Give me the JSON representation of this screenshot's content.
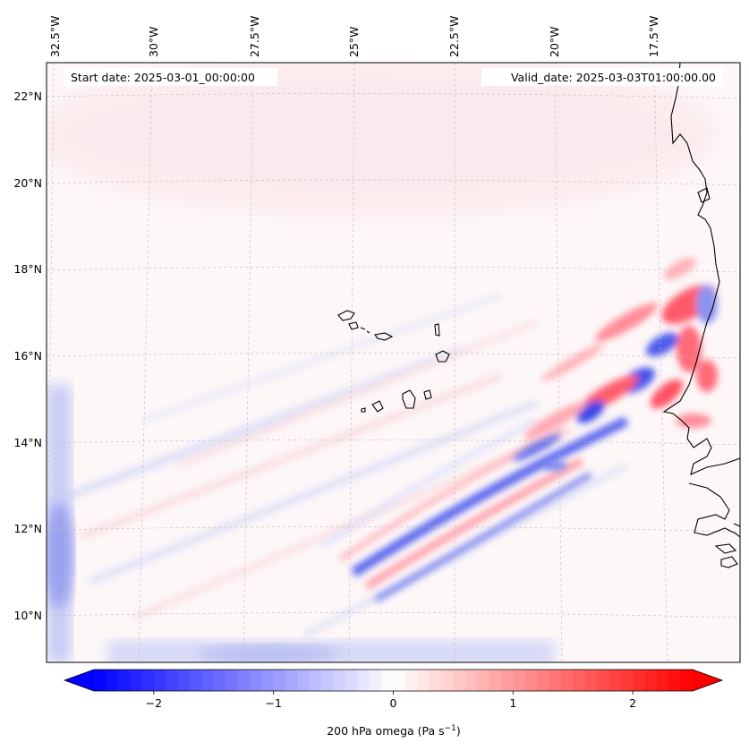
{
  "map": {
    "start_date": "Start date: 2025-03-01_00:00:00",
    "valid_date": "Valid_date: 2025-03-03T01:00:00.00",
    "lon_labels": [
      "32.5°W",
      "30°W",
      "27.5°W",
      "25°W",
      "22.5°W",
      "20°W",
      "17.5°W"
    ],
    "lat_labels": [
      "22°N",
      "20°N",
      "18°N",
      "16°N",
      "14°N",
      "12°N",
      "10°N"
    ],
    "features": [
      "Cape Verde islands",
      "West African coastline (Mauritania, Senegal, Gambia, Guinea-Bissau)"
    ]
  },
  "colorbar": {
    "label": "200 hPa omega (Pa s",
    "label_sup": "−1",
    "label_close": ")",
    "ticks": [
      "−2",
      "−1",
      "0",
      "1",
      "2"
    ],
    "tick_values": [
      -2,
      -1,
      0,
      1,
      2
    ],
    "vmin": -2.5,
    "vmax": 2.5,
    "negative_color": "#0000ff",
    "zero_color": "#ffffff",
    "positive_color": "#ff0000"
  }
}
